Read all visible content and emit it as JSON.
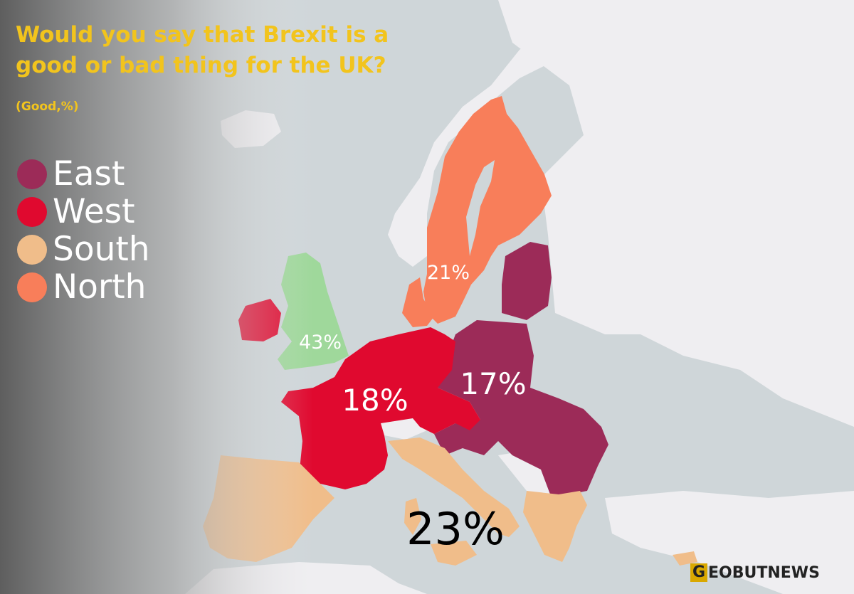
{
  "title": "Would you say that Brexit is a good or bad thing for the UK?",
  "subtitle": "(Good,%)",
  "legend": [
    {
      "label": "East",
      "color": "#9c2b58"
    },
    {
      "label": "West",
      "color": "#e0092f"
    },
    {
      "label": "South",
      "color": "#f0bd8a"
    },
    {
      "label": "North",
      "color": "#f87e5a"
    }
  ],
  "colors": {
    "uk": "#9fd89b",
    "sea": "#cfd6d9",
    "land": "#efeef1",
    "title": "#f2c41d"
  },
  "regions": [
    {
      "name": "UK",
      "value": "43%"
    },
    {
      "name": "North",
      "value": "21%"
    },
    {
      "name": "West",
      "value": "18%"
    },
    {
      "name": "East",
      "value": "17%"
    },
    {
      "name": "South",
      "value": "23%"
    }
  ],
  "logo": {
    "first": "G",
    "rest": "EOBUTNEWS"
  }
}
